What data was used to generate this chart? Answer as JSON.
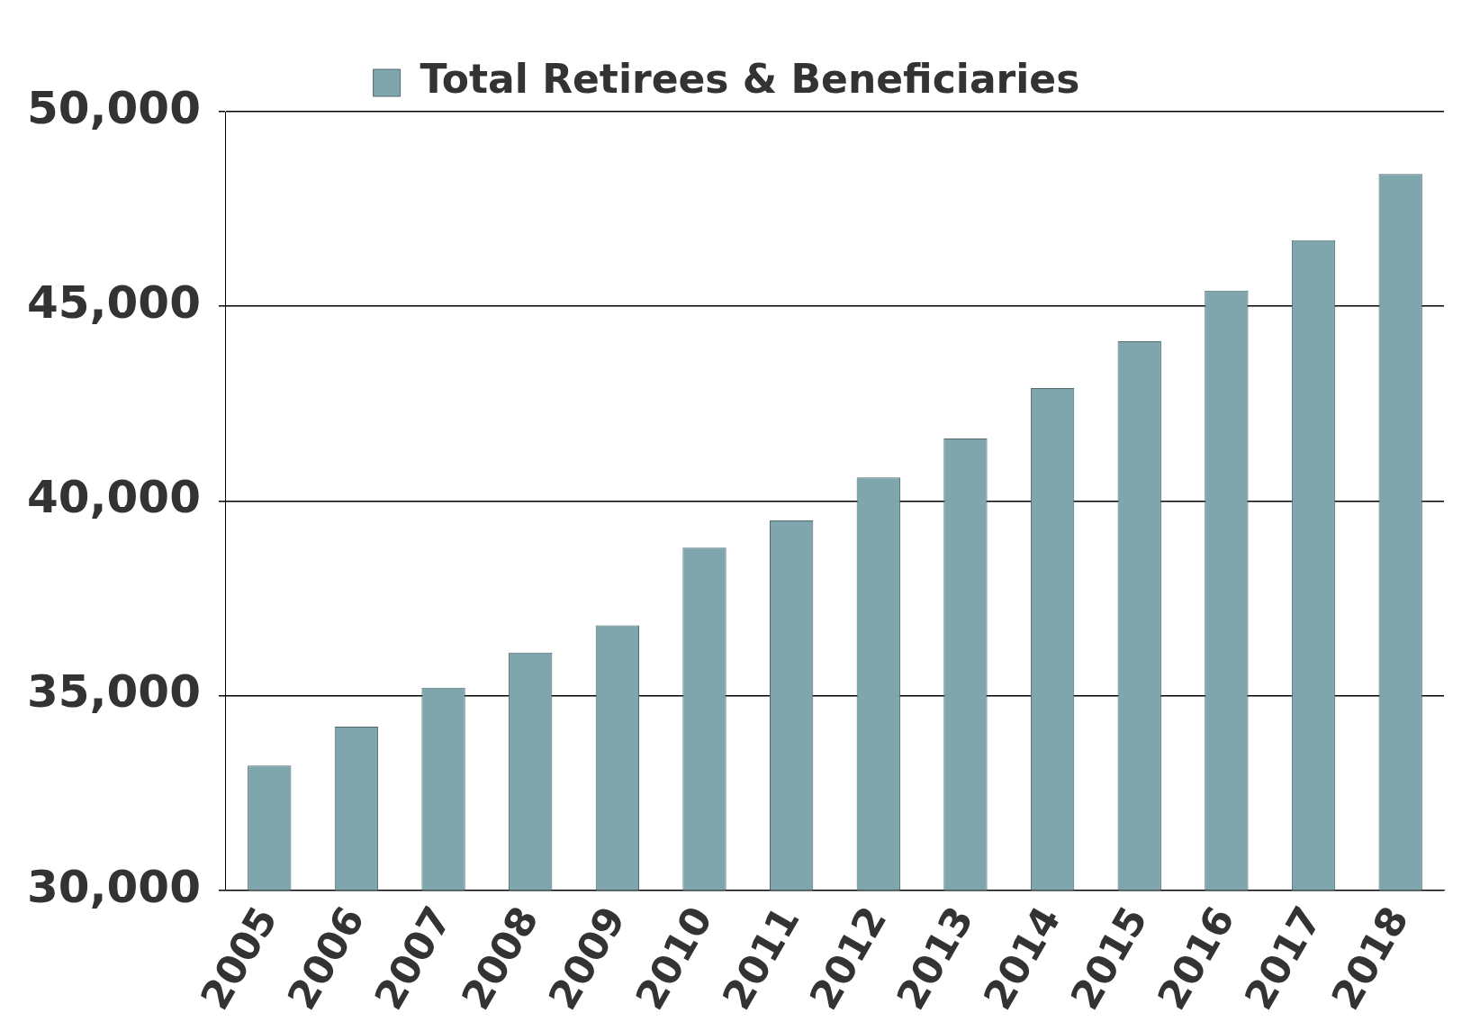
{
  "chart_data": {
    "type": "bar",
    "categories": [
      "2005",
      "2006",
      "2007",
      "2008",
      "2009",
      "2010",
      "2011",
      "2012",
      "2013",
      "2014",
      "2015",
      "2016",
      "2017",
      "2018"
    ],
    "series": [
      {
        "name": "Total Retirees & Beneficiaries",
        "color": "#7fa6ac",
        "values": [
          33200,
          34200,
          35200,
          36100,
          36800,
          38800,
          39500,
          40600,
          41600,
          42900,
          44100,
          45400,
          46700,
          48400
        ]
      }
    ],
    "ylim": [
      30000,
      50000
    ],
    "yticks": [
      {
        "value": 30000,
        "label": "30,000"
      },
      {
        "value": 35000,
        "label": "35,000"
      },
      {
        "value": 40000,
        "label": "40,000"
      },
      {
        "value": 45000,
        "label": "45,000"
      },
      {
        "value": 50000,
        "label": "50,000"
      }
    ],
    "grid": "y",
    "legend": "top"
  }
}
